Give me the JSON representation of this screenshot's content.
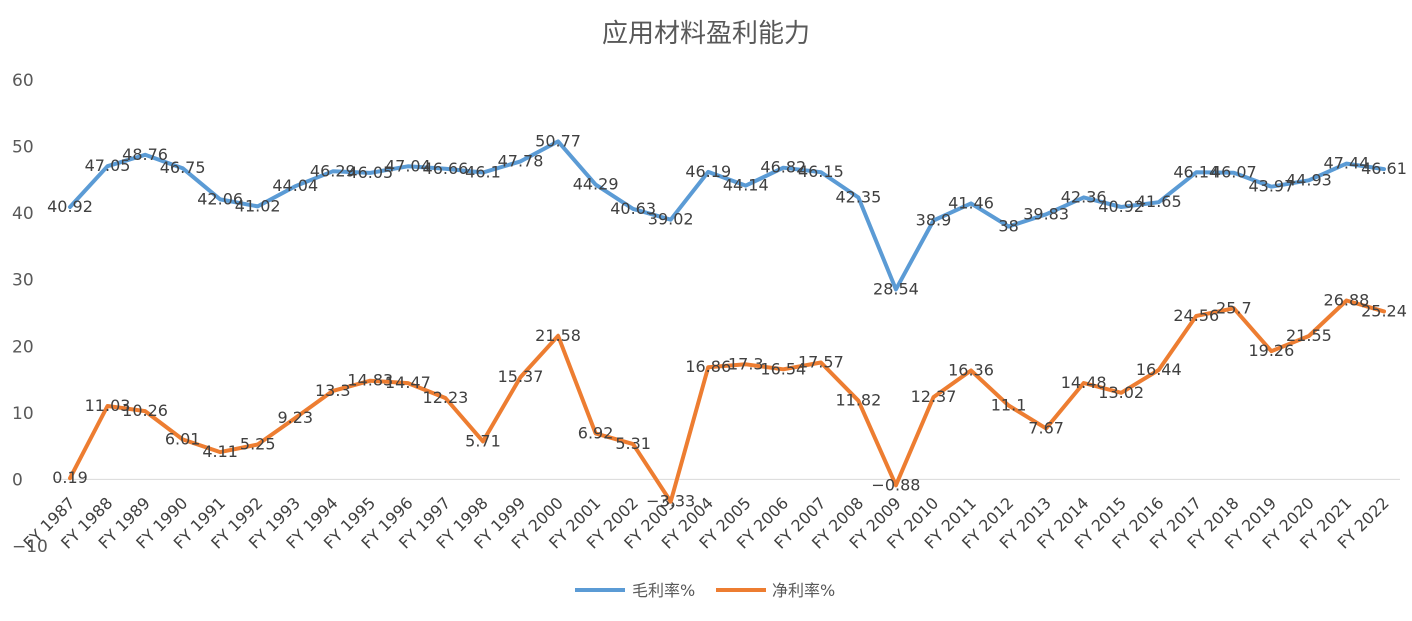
{
  "chart_data": {
    "type": "line",
    "title": "应用材料盈利能力",
    "categories": [
      "FY 1987",
      "FY 1988",
      "FY 1989",
      "FY 1990",
      "FY 1991",
      "FY 1992",
      "FY 1993",
      "FY 1994",
      "FY 1995",
      "FY 1996",
      "FY 1997",
      "FY 1998",
      "FY 1999",
      "FY 2000",
      "FY 2001",
      "FY 2002",
      "FY 2003",
      "FY 2004",
      "FY 2005",
      "FY 2006",
      "FY 2007",
      "FY 2008",
      "FY 2009",
      "FY 2010",
      "FY 2011",
      "FY 2012",
      "FY 2013",
      "FY 2014",
      "FY 2015",
      "FY 2016",
      "FY 2017",
      "FY 2018",
      "FY 2019",
      "FY 2020",
      "FY 2021",
      "FY 2022"
    ],
    "series": [
      {
        "name": "毛利率%",
        "color": "#5B9BD5",
        "values": [
          40.92,
          47.05,
          48.76,
          46.75,
          42.06,
          41.02,
          44.04,
          46.29,
          46.05,
          47.04,
          46.66,
          46.1,
          47.78,
          50.77,
          44.29,
          40.63,
          39.02,
          46.19,
          44.14,
          46.82,
          46.15,
          42.35,
          28.54,
          38.9,
          41.46,
          38,
          39.83,
          42.36,
          40.92,
          41.65,
          46.14,
          46.07,
          43.97,
          44.93,
          47.44,
          46.61
        ],
        "labels": [
          "40.92",
          "47.05",
          "48.76",
          "46.75",
          "42.06",
          "41.02",
          "44.04",
          "46.29",
          "46.05",
          "47.04",
          "46.66",
          "46.1",
          "47.78",
          "50.77",
          "44.29",
          "40.63",
          "39.02",
          "46.19",
          "44.14",
          "46.82",
          "46.15",
          "42.35",
          "28.54",
          "38.9",
          "41.46",
          "38",
          "39.83",
          "42.36",
          "40.92",
          "41.65",
          "46.14",
          "46.07",
          "43.97",
          "44.93",
          "47.44",
          "46.61"
        ]
      },
      {
        "name": "净利率%",
        "color": "#ED7D31",
        "values": [
          0.19,
          11.03,
          10.26,
          6.01,
          4.11,
          5.25,
          9.23,
          13.3,
          14.83,
          14.47,
          12.23,
          5.71,
          15.37,
          21.58,
          6.92,
          5.31,
          -3.33,
          16.86,
          17.3,
          16.54,
          17.57,
          11.82,
          -0.88,
          12.37,
          16.36,
          11.1,
          7.67,
          14.48,
          13.02,
          16.44,
          24.56,
          25.7,
          19.26,
          21.55,
          26.88,
          25.24
        ],
        "labels": [
          "0.19",
          "11.03",
          "10.26",
          "6.01",
          "4.11",
          "5.25",
          "9.23",
          "13.3",
          "14.83",
          "14.47",
          "12.23",
          "5.71",
          "15.37",
          "21.58",
          "6.92",
          "5.31",
          "−3.33",
          "16.86",
          "17.3",
          "16.54",
          "17.57",
          "11.82",
          "−0.88",
          "12.37",
          "16.36",
          "11.1",
          "7.67",
          "14.48",
          "13.02",
          "16.44",
          "24.56",
          "25.7",
          "19.26",
          "21.55",
          "26.88",
          "25.24"
        ]
      }
    ],
    "ylim": [
      -10,
      60
    ],
    "yticks": [
      "−10",
      "0",
      "10",
      "20",
      "30",
      "40",
      "50",
      "60"
    ],
    "ytick_values": [
      -10,
      0,
      10,
      20,
      30,
      40,
      50,
      60
    ],
    "xlabel": "",
    "ylabel": "",
    "grid": false,
    "legend_position": "bottom"
  }
}
